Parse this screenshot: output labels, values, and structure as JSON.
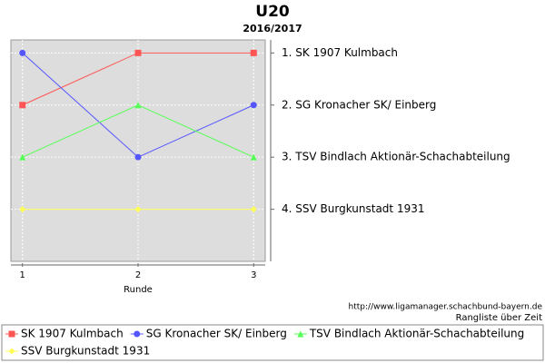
{
  "chart_data": {
    "type": "line",
    "title": "U20",
    "subtitle": "2016/2017",
    "x_label": "Runde",
    "x": [
      1,
      2,
      3
    ],
    "xlim": [
      0.9,
      3.1
    ],
    "xticks": [
      1,
      2,
      3
    ],
    "ylim": [
      5,
      0.75
    ],
    "yticks": [
      {
        "value": 1,
        "label": "1. SK 1907 Kulmbach"
      },
      {
        "value": 2,
        "label": "2. SG Kronacher SK/ Einberg"
      },
      {
        "value": 3,
        "label": "3. TSV Bindlach Aktionär-Schachabteilung"
      },
      {
        "value": 4,
        "label": "4. SSV Burgkunstadt 1931"
      }
    ],
    "grid": true,
    "series": [
      {
        "name": "SK 1907 Kulmbach",
        "color": "#ff5555",
        "marker": "square",
        "values": [
          2,
          1,
          1
        ]
      },
      {
        "name": "SG Kronacher SK/ Einberg",
        "color": "#5555ff",
        "marker": "circle",
        "values": [
          1,
          3,
          2
        ]
      },
      {
        "name": "TSV Bindlach Aktionär-Schachabteilung",
        "color": "#55ff55",
        "marker": "triangle",
        "values": [
          3,
          2,
          3
        ]
      },
      {
        "name": "SSV Burgkunstadt 1931",
        "color": "#ffff55",
        "marker": "diamond",
        "values": [
          4,
          4,
          4
        ]
      }
    ],
    "source": "http://www.ligamanager.schachbund-bayern.de",
    "note": "Rangliste über Zeit"
  }
}
